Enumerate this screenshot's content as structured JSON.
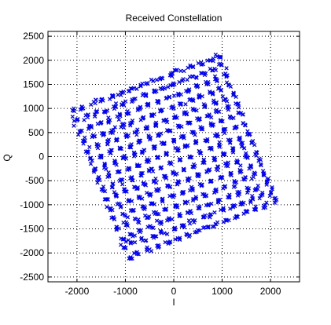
{
  "chart_data": {
    "type": "scatter",
    "title": "Received Constellation",
    "xlabel": "I",
    "ylabel": "Q",
    "xlim": [
      -2600,
      2600
    ],
    "ylim": [
      -2600,
      2600
    ],
    "xticks": [
      -2000,
      -1000,
      0,
      1000,
      2000
    ],
    "yticks": [
      -2500,
      -2000,
      -1500,
      -1000,
      -500,
      0,
      500,
      1000,
      1500,
      2000,
      2500
    ],
    "grid": true,
    "grid_style": "dotted",
    "marker": "x",
    "series": [
      {
        "color": "#0000ff",
        "constellation": {
          "levels": [
            -15,
            -13,
            -11,
            -9,
            -7,
            -5,
            -3,
            -1,
            1,
            3,
            5,
            7,
            9,
            11,
            13,
            15
          ],
          "scale": 108,
          "rotation_deg": 21,
          "points_per_symbol": 5,
          "jitter": 30
        }
      }
    ]
  },
  "colors": {
    "points": "#0000ff",
    "axes": "#000000",
    "grid": "#000000",
    "background": "#ffffff"
  }
}
